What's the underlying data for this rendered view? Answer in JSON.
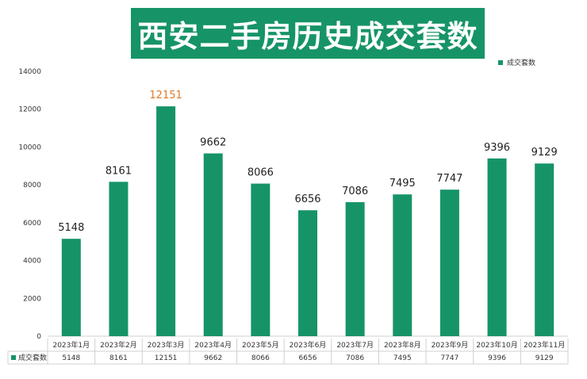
{
  "title": "西安二手房历史成交套数",
  "legend": "成交套数",
  "colors": {
    "bar": "#169467",
    "highlight_label": "#e07a2a"
  },
  "chart_data": {
    "type": "bar",
    "categories": [
      "2023年1月",
      "2023年2月",
      "2023年3月",
      "2023年4月",
      "2023年5月",
      "2023年6月",
      "2023年7月",
      "2023年8月",
      "2023年9月",
      "2023年10月",
      "2023年11月"
    ],
    "series": [
      {
        "name": "成交套数",
        "values": [
          5148,
          8161,
          12151,
          9662,
          8066,
          6656,
          7086,
          7495,
          7747,
          9396,
          9129
        ]
      }
    ],
    "ylim": [
      0,
      14000
    ],
    "yticks": [
      0,
      2000,
      4000,
      6000,
      8000,
      10000,
      12000,
      14000
    ],
    "highlight_index": 2,
    "data_table": true,
    "legend_position": "top-right"
  }
}
